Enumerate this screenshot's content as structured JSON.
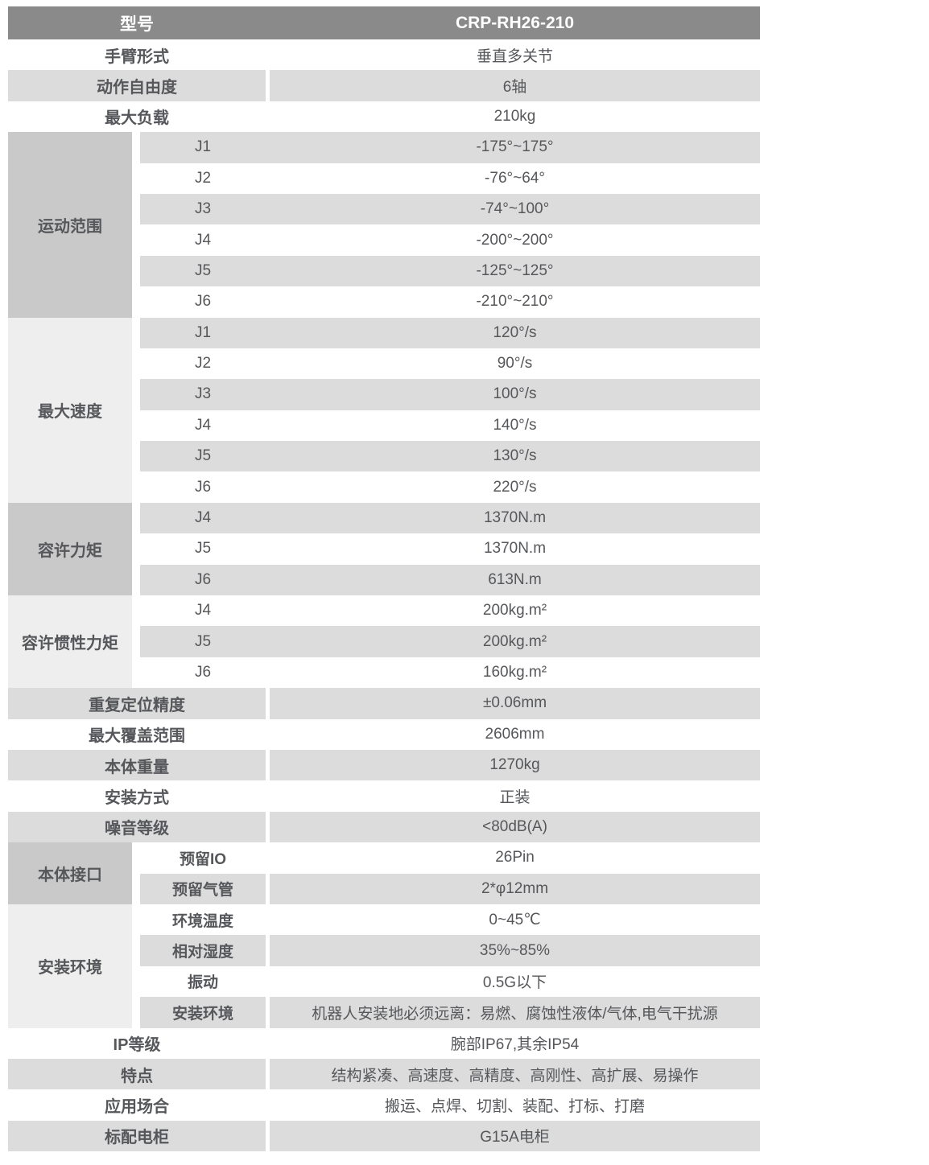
{
  "colors": {
    "header_bg": "#8a8a8a",
    "header_text": "#ffffff",
    "stripe_gray": "#dcdcdc",
    "section_medium_gray": "#c9c9c9",
    "section_light_gray": "#eeeeee",
    "body_text": "#56575a"
  },
  "table": {
    "header": {
      "label": "型号",
      "value": "CRP-RH26-210"
    },
    "blocks": [
      {
        "kind": "simple",
        "label": "手臂形式",
        "value": "垂直多关节"
      },
      {
        "kind": "simple",
        "label": "动作自由度",
        "value": "6轴"
      },
      {
        "kind": "simple",
        "label": "最大负载",
        "value": "210kg"
      },
      {
        "kind": "group",
        "label": "运动范围",
        "tone": "medium",
        "divider": false,
        "rows": [
          {
            "sub": "J1",
            "value": "-175°~175°"
          },
          {
            "sub": "J2",
            "value": "-76°~64°"
          },
          {
            "sub": "J3",
            "value": "-74°~100°"
          },
          {
            "sub": "J4",
            "value": "-200°~200°"
          },
          {
            "sub": "J5",
            "value": "-125°~125°"
          },
          {
            "sub": "J6",
            "value": "-210°~210°"
          }
        ]
      },
      {
        "kind": "group",
        "label": "最大速度",
        "tone": "light",
        "divider": false,
        "rows": [
          {
            "sub": "J1",
            "value": "120°/s"
          },
          {
            "sub": "J2",
            "value": "90°/s"
          },
          {
            "sub": "J3",
            "value": "100°/s"
          },
          {
            "sub": "J4",
            "value": "140°/s"
          },
          {
            "sub": "J5",
            "value": "130°/s"
          },
          {
            "sub": "J6",
            "value": "220°/s"
          }
        ]
      },
      {
        "kind": "group",
        "label": "容许力矩",
        "tone": "medium",
        "divider": false,
        "rows": [
          {
            "sub": "J4",
            "value": "1370N.m"
          },
          {
            "sub": "J5",
            "value": "1370N.m"
          },
          {
            "sub": "J6",
            "value": "613N.m"
          }
        ]
      },
      {
        "kind": "group",
        "label": "容许惯性力矩",
        "tone": "light",
        "divider": false,
        "rows": [
          {
            "sub": "J4",
            "value": "200kg.m²"
          },
          {
            "sub": "J5",
            "value": "200kg.m²"
          },
          {
            "sub": "J6",
            "value": "160kg.m²"
          }
        ]
      },
      {
        "kind": "simple",
        "label": "重复定位精度",
        "value": "±0.06mm"
      },
      {
        "kind": "simple",
        "label": "最大覆盖范围",
        "value": "2606mm"
      },
      {
        "kind": "simple",
        "label": "本体重量",
        "value": "1270kg"
      },
      {
        "kind": "simple",
        "label": "安装方式",
        "value": "正装"
      },
      {
        "kind": "simple",
        "label": "噪音等级",
        "value": "<80dB(A)"
      },
      {
        "kind": "group",
        "label": "本体接口",
        "tone": "medium",
        "divider": true,
        "rows": [
          {
            "sub": "预留IO",
            "value": "26Pin"
          },
          {
            "sub": "预留气管",
            "value": "2*φ12mm"
          }
        ]
      },
      {
        "kind": "group",
        "label": "安装环境",
        "tone": "light",
        "divider": true,
        "rows": [
          {
            "sub": "环境温度",
            "value": "0~45℃"
          },
          {
            "sub": "相对湿度",
            "value": "35%~85%"
          },
          {
            "sub": "振动",
            "value": "0.5G以下"
          },
          {
            "sub": "安装环境",
            "value": "机器人安装地必须远离：易燃、腐蚀性液体/气体,电气干扰源"
          }
        ]
      },
      {
        "kind": "simple",
        "label": "IP等级",
        "value": "腕部IP67,其余IP54"
      },
      {
        "kind": "simple",
        "label": "特点",
        "value": "结构紧凑、高速度、高精度、高刚性、高扩展、易操作"
      },
      {
        "kind": "simple",
        "label": "应用场合",
        "value": "搬运、点焊、切割、装配、打标、打磨"
      },
      {
        "kind": "simple",
        "label": "标配电柜",
        "value": "G15A电柜"
      }
    ]
  }
}
